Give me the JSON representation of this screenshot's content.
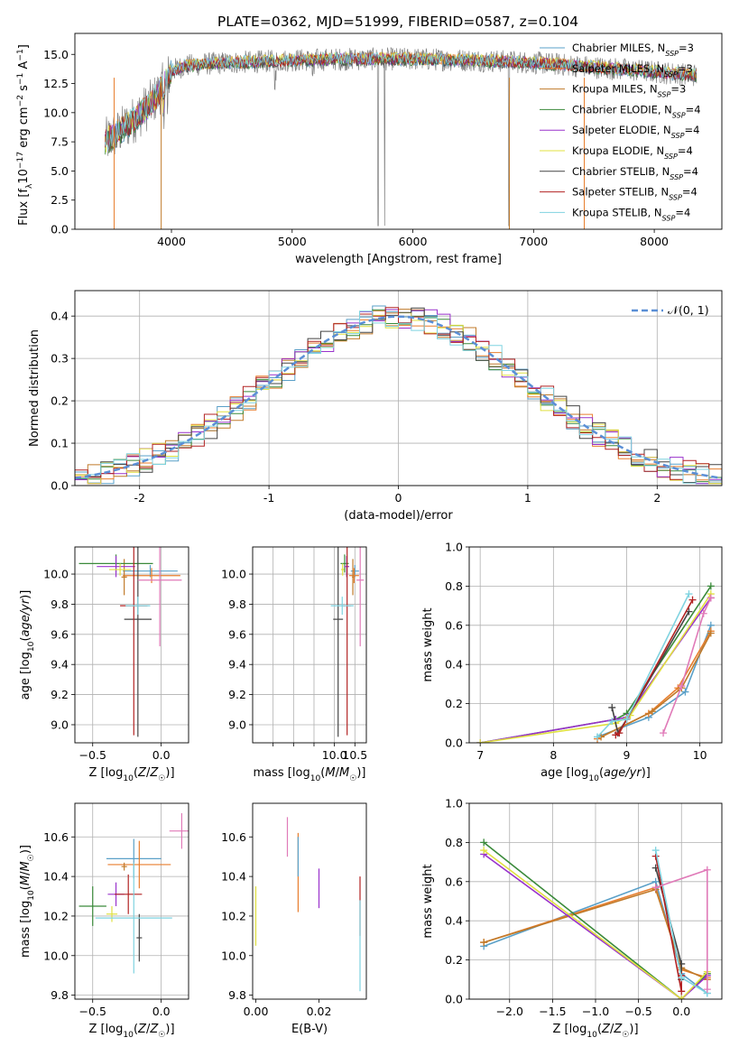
{
  "figure_title": "PLATE=0362, MJD=51999, FIBERID=0587, z=0.104",
  "model_colors": [
    "#5aa0c8",
    "#e87e2e",
    "#c07a2a",
    "#3a8a3a",
    "#9932cc",
    "#e0e040",
    "#444444",
    "#b22222",
    "#7fd3e0"
  ],
  "chart_data": [
    {
      "id": "spectrum",
      "type": "line",
      "title": "PLATE=0362, MJD=51999, FIBERID=0587, z=0.104",
      "xlabel": "wavelength [Angstrom, rest frame]",
      "ylabel": "Flux [f_λ 10^-17 erg cm^-2 s^-1 A^-1]",
      "xlim": [
        3200,
        8560
      ],
      "ylim": [
        0,
        16.8
      ],
      "xticks": [
        4000,
        5000,
        6000,
        7000,
        8000
      ],
      "yticks": [
        0.0,
        2.5,
        5.0,
        7.5,
        10.0,
        12.5,
        15.0
      ],
      "grid": false,
      "legend_position": "right",
      "series": [
        {
          "name": "Chabrier MILES, N_SSP=3",
          "color": "#5aa0c8"
        },
        {
          "name": "Salpeter MILES, N_SSP=3",
          "color": "#e87e2e"
        },
        {
          "name": "Kroupa MILES, N_SSP=3",
          "color": "#c07a2a"
        },
        {
          "name": "Chabrier ELODIE, N_SSP=4",
          "color": "#3a8a3a"
        },
        {
          "name": "Salpeter ELODIE, N_SSP=4",
          "color": "#9932cc"
        },
        {
          "name": "Kroupa ELODIE, N_SSP=4",
          "color": "#e0e040"
        },
        {
          "name": "Chabrier STELIB, N_SSP=4",
          "color": "#444444"
        },
        {
          "name": "Salpeter STELIB, N_SSP=4",
          "color": "#b22222"
        },
        {
          "name": "Kroupa STELIB, N_SSP=4",
          "color": "#7fd3e0"
        }
      ],
      "continuum": {
        "x": [
          3450,
          3550,
          3700,
          3850,
          3950,
          4000,
          4100,
          4300,
          4500,
          4800,
          5000,
          5500,
          6000,
          6500,
          7000,
          7500,
          8000,
          8350
        ],
        "y": [
          7.5,
          8.2,
          9.5,
          11.0,
          12.6,
          13.6,
          14.0,
          14.2,
          14.3,
          14.4,
          14.5,
          14.6,
          14.6,
          14.5,
          14.3,
          13.9,
          13.5,
          13.2
        ]
      }
    },
    {
      "id": "residuals",
      "type": "bar",
      "xlabel": "(data-model)/error",
      "ylabel": "Normed distribution",
      "xlim": [
        -2.5,
        2.5
      ],
      "ylim": [
        0,
        0.46
      ],
      "xticks": [
        -2,
        -1,
        0,
        1,
        2
      ],
      "yticks": [
        0.0,
        0.1,
        0.2,
        0.3,
        0.4
      ],
      "grid": true,
      "bin_width": 0.1,
      "bin_start": -2.5,
      "legend_label": "𝒩(0, 1)",
      "legend_position": "top-right"
    },
    {
      "id": "age_vs_Z",
      "type": "scatter",
      "xlabel": "Z [log10(Z/Z☉)]",
      "ylabel": "age [log10(age/yr)]",
      "xlim": [
        -0.63,
        0.2
      ],
      "ylim": [
        8.88,
        10.18
      ],
      "xticks": [
        -0.5,
        0.0
      ],
      "xticklabels": [
        "−0.5",
        "0.0"
      ],
      "yticks": [
        9.0,
        9.2,
        9.4,
        9.6,
        9.8,
        10.0
      ],
      "yticklabels": [
        "9.0",
        "9.2",
        "9.4",
        "9.6",
        "9.8",
        "10.0"
      ],
      "grid": true,
      "points": [
        {
          "x": -0.08,
          "xerr": 0.2,
          "y": 10.02,
          "yerr": 0.04,
          "color": "#5aa0c8"
        },
        {
          "x": -0.07,
          "xerr": 0.21,
          "y": 9.99,
          "yerr": 0.05,
          "color": "#e87e2e"
        },
        {
          "x": -0.27,
          "xerr": 0.02,
          "y": 9.98,
          "yerr": 0.12,
          "color": "#c07a2a"
        },
        {
          "x": -0.33,
          "xerr": 0.27,
          "y": 10.07,
          "yerr": 0.06,
          "color": "#3a8a3a"
        },
        {
          "x": -0.33,
          "xerr": 0.14,
          "y": 10.05,
          "yerr": 0.07,
          "color": "#9932cc"
        },
        {
          "x": -0.3,
          "xerr": 0.08,
          "y": 10.03,
          "yerr": 0.04,
          "color": "#e0e040"
        },
        {
          "x": -0.17,
          "xerr": 0.1,
          "y": 9.7,
          "yerr": 0.78,
          "color": "#444444"
        },
        {
          "x": -0.2,
          "xerr": 0.1,
          "y": 9.79,
          "yerr": 0.86,
          "color": "#b22222"
        },
        {
          "x": -0.17,
          "xerr": 0.09,
          "y": 9.79,
          "yerr": 0.06,
          "color": "#7fd3e0"
        },
        {
          "x": -0.01,
          "xerr": 0.16,
          "y": 9.96,
          "yerr": 0.44,
          "color": "#e07ab8"
        }
      ]
    },
    {
      "id": "age_vs_mass",
      "type": "scatter",
      "xlabel": "mass [log10(M/M☉)]",
      "ylabel": "",
      "xlim": [
        8.0,
        10.78
      ],
      "ylim": [
        8.88,
        10.18
      ],
      "xticks": [
        8.5,
        9.0,
        9.5,
        10.0,
        10.5
      ],
      "xticklabels": [
        "",
        "",
        "",
        "10.0",
        "10.5"
      ],
      "yticks": [
        9.0,
        9.2,
        9.4,
        9.6,
        9.8,
        10.0
      ],
      "yticklabels": [
        "9.0",
        "9.2",
        "9.4",
        "9.6",
        "9.8",
        "10.0"
      ],
      "grid": true,
      "points": [
        {
          "x": 10.5,
          "xerr": 0.1,
          "y": 10.02,
          "yerr": 0.04,
          "color": "#5aa0c8"
        },
        {
          "x": 10.48,
          "xerr": 0.12,
          "y": 9.99,
          "yerr": 0.05,
          "color": "#e87e2e"
        },
        {
          "x": 10.45,
          "xerr": 0.02,
          "y": 9.98,
          "yerr": 0.12,
          "color": "#c07a2a"
        },
        {
          "x": 10.25,
          "xerr": 0.1,
          "y": 10.07,
          "yerr": 0.06,
          "color": "#3a8a3a"
        },
        {
          "x": 10.3,
          "xerr": 0.06,
          "y": 10.05,
          "yerr": 0.07,
          "color": "#9932cc"
        },
        {
          "x": 10.2,
          "xerr": 0.04,
          "y": 10.03,
          "yerr": 0.04,
          "color": "#e0e040"
        },
        {
          "x": 10.09,
          "xerr": 0.12,
          "y": 9.7,
          "yerr": 0.78,
          "color": "#444444"
        },
        {
          "x": 10.31,
          "xerr": 0.1,
          "y": 9.79,
          "yerr": 0.86,
          "color": "#b22222"
        },
        {
          "x": 10.19,
          "xerr": 0.28,
          "y": 9.79,
          "yerr": 0.06,
          "color": "#7fd3e0"
        },
        {
          "x": 10.63,
          "xerr": 0.09,
          "y": 9.96,
          "yerr": 0.44,
          "color": "#e07ab8"
        }
      ]
    },
    {
      "id": "weight_vs_age",
      "type": "line",
      "xlabel": "age [log10(age/yr)]",
      "ylabel": "mass weight",
      "xlim": [
        6.85,
        10.3
      ],
      "ylim": [
        0,
        1.0
      ],
      "xticks": [
        7,
        8,
        9,
        10
      ],
      "xticklabels": [
        "7",
        "8",
        "9",
        "10"
      ],
      "yticks": [
        0.0,
        0.2,
        0.4,
        0.6,
        0.8,
        1.0
      ],
      "yticklabels": [
        "0.0",
        "0.2",
        "0.4",
        "0.6",
        "0.8",
        "1.0"
      ],
      "grid": true,
      "series": [
        {
          "color": "#5aa0c8",
          "x": [
            8.6,
            9.3,
            9.8,
            10.15
          ],
          "y": [
            0.03,
            0.13,
            0.26,
            0.6
          ]
        },
        {
          "color": "#e87e2e",
          "x": [
            8.6,
            9.3,
            9.7,
            10.15
          ],
          "y": [
            0.02,
            0.15,
            0.28,
            0.57
          ]
        },
        {
          "color": "#c07a2a",
          "x": [
            8.65,
            9.35,
            9.75,
            10.15
          ],
          "y": [
            0.03,
            0.16,
            0.28,
            0.56
          ]
        },
        {
          "color": "#3a8a3a",
          "x": [
            7.0,
            8.85,
            9.0,
            10.15
          ],
          "y": [
            0.0,
            0.12,
            0.15,
            0.8
          ]
        },
        {
          "color": "#9932cc",
          "x": [
            7.0,
            8.85,
            9.0,
            10.15
          ],
          "y": [
            0.0,
            0.12,
            0.13,
            0.74
          ]
        },
        {
          "color": "#e0e040",
          "x": [
            7.0,
            8.85,
            9.05,
            10.15
          ],
          "y": [
            0.0,
            0.1,
            0.14,
            0.76
          ]
        },
        {
          "color": "#444444",
          "x": [
            8.8,
            8.88,
            9.0,
            9.85
          ],
          "y": [
            0.18,
            0.05,
            0.12,
            0.67
          ]
        },
        {
          "color": "#b22222",
          "x": [
            8.85,
            8.9,
            9.0,
            9.9
          ],
          "y": [
            0.04,
            0.05,
            0.12,
            0.73
          ]
        },
        {
          "color": "#7fd3e0",
          "x": [
            8.6,
            8.8,
            9.0,
            9.85
          ],
          "y": [
            0.03,
            0.11,
            0.12,
            0.76
          ]
        },
        {
          "color": "#e07ab8",
          "x": [
            9.5,
            9.75,
            10.05,
            10.15
          ],
          "y": [
            0.05,
            0.29,
            0.66,
            0.74
          ]
        }
      ]
    },
    {
      "id": "mass_vs_Z",
      "type": "scatter",
      "xlabel": "Z [log10(Z/Z☉)]",
      "ylabel": "mass [log10(M/M☉)]",
      "xlim": [
        -0.63,
        0.2
      ],
      "ylim": [
        9.78,
        10.77
      ],
      "xticks": [
        -0.5,
        0.0
      ],
      "xticklabels": [
        "−0.5",
        "0.0"
      ],
      "yticks": [
        9.8,
        10.0,
        10.2,
        10.4,
        10.6
      ],
      "yticklabels": [
        "9.8",
        "10.0",
        "10.2",
        "10.4",
        "10.6"
      ],
      "grid": true,
      "points": [
        {
          "x": -0.2,
          "xerr": 0.2,
          "y": 10.49,
          "yerr": 0.1,
          "color": "#5aa0c8"
        },
        {
          "x": -0.16,
          "xerr": 0.23,
          "y": 10.46,
          "yerr": 0.12,
          "color": "#e87e2e"
        },
        {
          "x": -0.27,
          "xerr": 0.02,
          "y": 10.45,
          "yerr": 0.02,
          "color": "#c07a2a"
        },
        {
          "x": -0.5,
          "xerr": 0.1,
          "y": 10.25,
          "yerr": 0.1,
          "color": "#3a8a3a"
        },
        {
          "x": -0.33,
          "xerr": 0.06,
          "y": 10.31,
          "yerr": 0.06,
          "color": "#9932cc"
        },
        {
          "x": -0.36,
          "xerr": 0.04,
          "y": 10.21,
          "yerr": 0.04,
          "color": "#e0e040"
        },
        {
          "x": -0.16,
          "xerr": 0.02,
          "y": 10.09,
          "yerr": 0.12,
          "color": "#444444"
        },
        {
          "x": -0.24,
          "xerr": 0.1,
          "y": 10.31,
          "yerr": 0.1,
          "color": "#b22222"
        },
        {
          "x": -0.2,
          "xerr": 0.28,
          "y": 10.19,
          "yerr": 0.28,
          "color": "#7fd3e0"
        },
        {
          "x": 0.15,
          "xerr": 0.09,
          "y": 10.63,
          "yerr": 0.09,
          "color": "#e07ab8"
        }
      ]
    },
    {
      "id": "mass_vs_EBV",
      "type": "scatter",
      "xlabel": "E(B-V)",
      "ylabel": "",
      "xlim": [
        -0.001,
        0.035
      ],
      "ylim": [
        9.78,
        10.77
      ],
      "xticks": [
        0.0,
        0.02
      ],
      "xticklabels": [
        "0.00",
        "0.02"
      ],
      "yticks": [
        9.8,
        10.0,
        10.2,
        10.4,
        10.6
      ],
      "yticklabels": [
        "9.8",
        "10.0",
        "10.2",
        "10.4",
        "10.6"
      ],
      "grid": false,
      "points": [
        {
          "x": 0.0,
          "xerr": 0.0,
          "y": 10.2,
          "yerr": 0.15,
          "color": "#e0e040"
        },
        {
          "x": 0.01,
          "xerr": 0.0,
          "y": 10.6,
          "yerr": 0.1,
          "color": "#e07ab8"
        },
        {
          "x": 0.0134,
          "xerr": 0.0,
          "y": 10.42,
          "yerr": 0.2,
          "color": "#e87e2e"
        },
        {
          "x": 0.0134,
          "xerr": 0.0,
          "y": 10.5,
          "yerr": 0.1,
          "color": "#5aa0c8"
        },
        {
          "x": 0.02,
          "xerr": 0.0,
          "y": 10.34,
          "yerr": 0.1,
          "color": "#9932cc"
        },
        {
          "x": 0.033,
          "xerr": 0.0,
          "y": 10.25,
          "yerr": 0.15,
          "color": "#b22222"
        },
        {
          "x": 0.033,
          "xerr": 0.0,
          "y": 10.05,
          "yerr": 0.23,
          "color": "#7fd3e0"
        }
      ]
    },
    {
      "id": "weight_vs_Z",
      "type": "line",
      "xlabel": "Z [log10(Z/Z☉)]",
      "ylabel": "mass weight",
      "xlim": [
        -2.47,
        0.47
      ],
      "ylim": [
        0,
        1.0
      ],
      "xticks": [
        -2.0,
        -1.5,
        -1.0,
        -0.5,
        0.0
      ],
      "xticklabels": [
        "−2.0",
        "−1.5",
        "−1.0",
        "−0.5",
        "0.0"
      ],
      "yticks": [
        0.0,
        0.2,
        0.4,
        0.6,
        0.8,
        1.0
      ],
      "yticklabels": [
        "0.0",
        "0.2",
        "0.4",
        "0.6",
        "0.8",
        "1.0"
      ],
      "grid": true,
      "series": [
        {
          "color": "#5aa0c8",
          "x": [
            -2.3,
            -0.3,
            0.0,
            0.3
          ],
          "y": [
            0.27,
            0.6,
            0.13,
            0.03
          ]
        },
        {
          "color": "#e87e2e",
          "x": [
            -2.3,
            -0.3,
            0.0,
            0.3
          ],
          "y": [
            0.29,
            0.57,
            0.15,
            0.11
          ]
        },
        {
          "color": "#c07a2a",
          "x": [
            -2.3,
            -0.3,
            0.0,
            0.3
          ],
          "y": [
            0.29,
            0.56,
            0.16,
            0.1
          ]
        },
        {
          "color": "#3a8a3a",
          "x": [
            -2.3,
            0.0,
            0.3
          ],
          "y": [
            0.8,
            0.0,
            0.13
          ]
        },
        {
          "color": "#9932cc",
          "x": [
            -2.3,
            0.0,
            0.3
          ],
          "y": [
            0.74,
            0.0,
            0.12
          ]
        },
        {
          "color": "#e0e040",
          "x": [
            -2.3,
            0.0,
            0.3
          ],
          "y": [
            0.76,
            0.0,
            0.14
          ]
        },
        {
          "color": "#444444",
          "x": [
            -0.3,
            0.0,
            0.0
          ],
          "y": [
            0.67,
            0.18,
            0.1
          ]
        },
        {
          "color": "#b22222",
          "x": [
            -0.3,
            0.0,
            0.0
          ],
          "y": [
            0.73,
            0.04,
            0.12
          ]
        },
        {
          "color": "#7fd3e0",
          "x": [
            -0.3,
            0.0,
            0.3
          ],
          "y": [
            0.76,
            0.11,
            0.03
          ]
        },
        {
          "color": "#e07ab8",
          "x": [
            -0.3,
            0.3,
            0.3
          ],
          "y": [
            0.57,
            0.66,
            0.05
          ]
        }
      ]
    }
  ]
}
